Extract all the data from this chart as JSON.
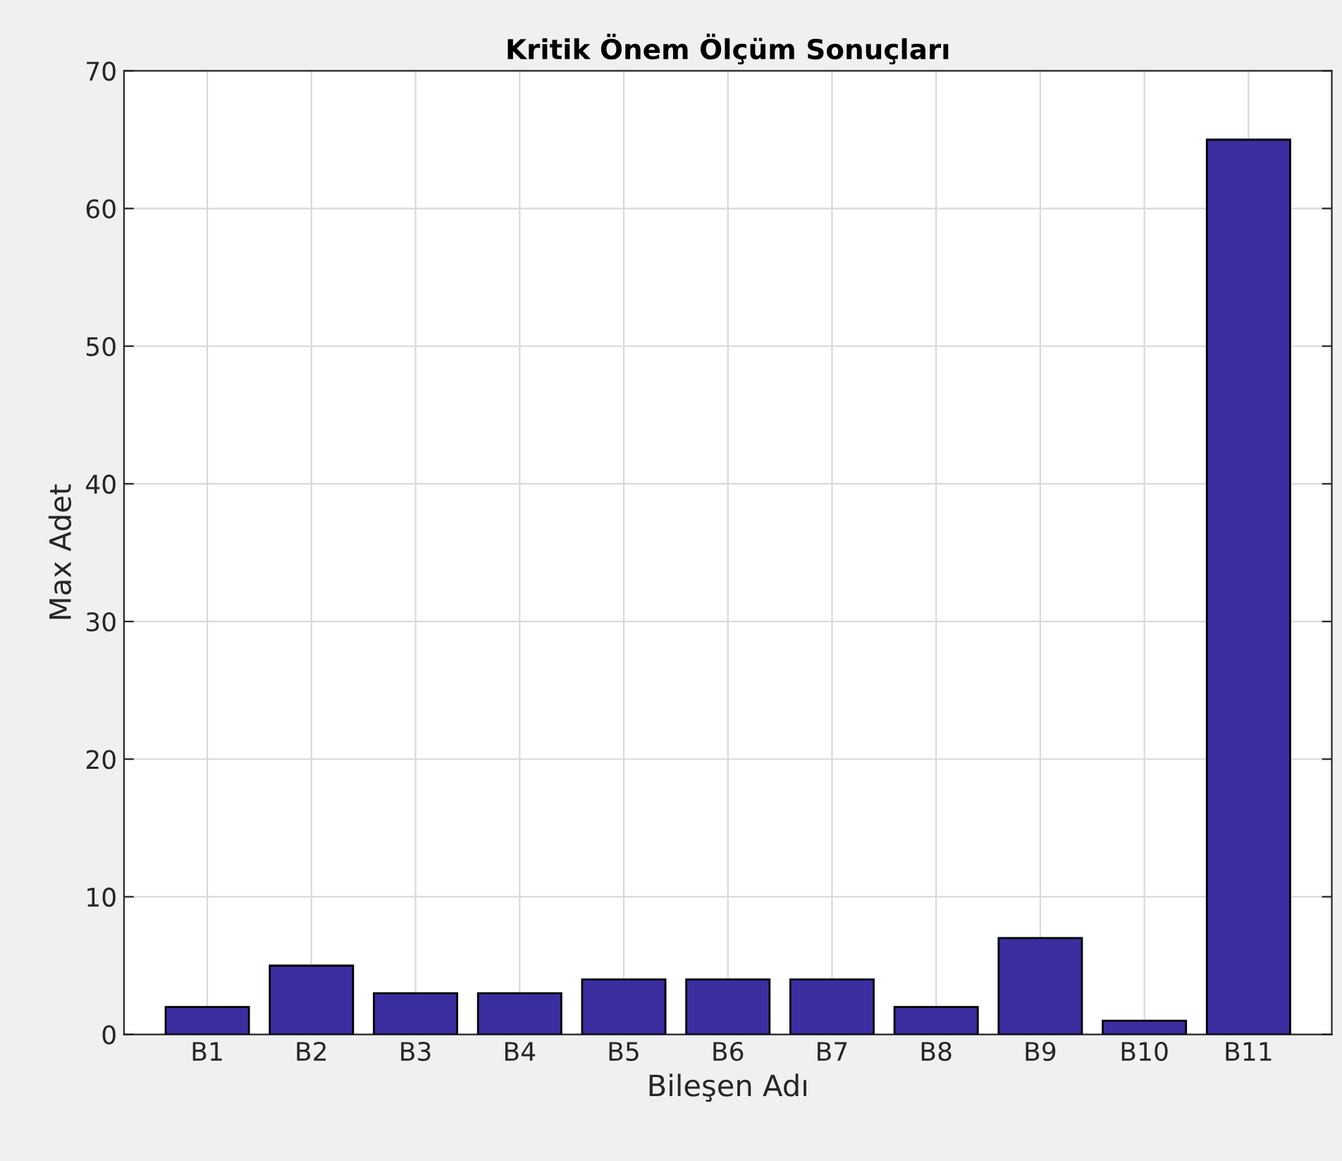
{
  "chart_data": {
    "type": "bar",
    "title": "Kritik Önem Ölçüm Sonuçları",
    "xlabel": "Bileşen Adı",
    "ylabel": "Max Adet",
    "categories": [
      "B1",
      "B2",
      "B3",
      "B4",
      "B5",
      "B6",
      "B7",
      "B8",
      "B9",
      "B10",
      "B11"
    ],
    "values": [
      2,
      5,
      3,
      3,
      4,
      4,
      4,
      2,
      7,
      1,
      65
    ],
    "color": "#3a2ea0",
    "ylim": [
      0,
      70
    ],
    "yticks": [
      0,
      10,
      20,
      30,
      40,
      50,
      60,
      70
    ],
    "grid": true
  }
}
